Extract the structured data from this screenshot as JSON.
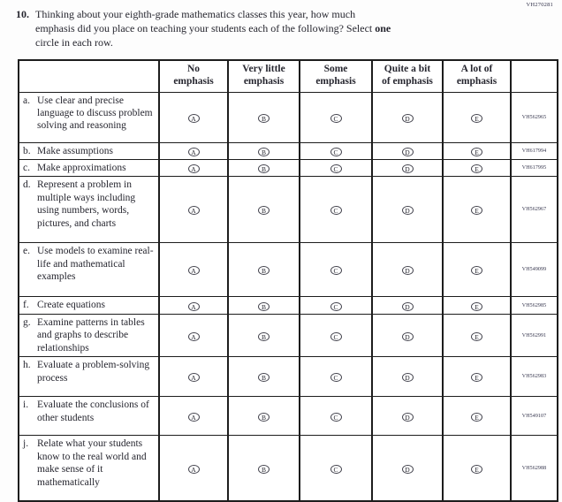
{
  "page_code": "VH270281",
  "question": {
    "number": "10.",
    "line1": "Thinking about your eighth-grade mathematics classes this year, how much",
    "line2_pre": "emphasis did you place on teaching your students each of the following? Select ",
    "line2_bold": "one",
    "line3": "circle in each row."
  },
  "table": {
    "columns": [
      "No\nemphasis",
      "Very little\nemphasis",
      "Some\nemphasis",
      "Quite a bit\nof emphasis",
      "A lot of\nemphasis"
    ],
    "bubble_letters": [
      "A",
      "B",
      "C",
      "D",
      "E"
    ],
    "rows": [
      {
        "letter": "a.",
        "text": "Use clear and precise language to discuss problem solving and reasoning",
        "code": "VH562965"
      },
      {
        "letter": "b.",
        "text": "Make assumptions",
        "code": "VH617994"
      },
      {
        "letter": "c.",
        "text": "Make approximations",
        "code": "VH617995"
      },
      {
        "letter": "d.",
        "text": "Represent a problem in multiple ways including using numbers, words, pictures, and charts",
        "code": "VH562967"
      },
      {
        "letter": "e.",
        "text": "Use models to examine real-life and mathematical examples",
        "code": "VH549099"
      },
      {
        "letter": "f.",
        "text": "Create equations",
        "code": "VH562985"
      },
      {
        "letter": "g.",
        "text": "Examine patterns in tables and graphs to describe relationships",
        "code": "VH562991"
      },
      {
        "letter": "h.",
        "text": "Evaluate a problem-solving process",
        "code": "VH562983"
      },
      {
        "letter": "i.",
        "text": "Evaluate the conclusions of other students",
        "code": "VH549107"
      },
      {
        "letter": "j.",
        "text": "Relate what your students know to the real world and make sense of it mathematically",
        "code": "VH562988"
      }
    ]
  },
  "colors": {
    "text": "#26262f",
    "border": "#1d1d1d",
    "code_text": "#32324a",
    "background": "#fdfdfd"
  }
}
